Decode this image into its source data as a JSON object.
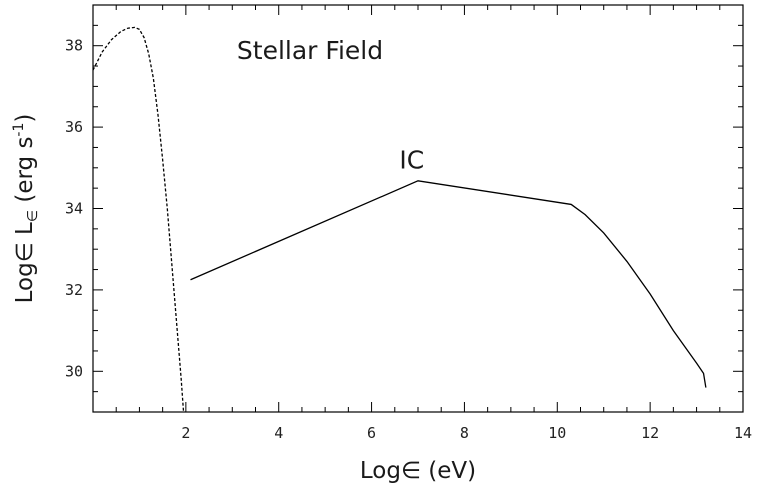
{
  "chart_data": {
    "type": "line",
    "xlabel": {
      "main": "Log∈ (eV)"
    },
    "ylabel": {
      "prefix": "Log∈ L",
      "subscript": "∈",
      "units_open": " (erg s",
      "units_exp": "-1",
      "units_close": ")"
    },
    "xlim": [
      0,
      14
    ],
    "ylim": [
      29,
      39
    ],
    "x_ticks": [
      2,
      4,
      6,
      8,
      10,
      12,
      14
    ],
    "y_ticks": [
      30,
      32,
      34,
      36,
      38
    ],
    "x_tick_labels": [
      "2",
      "4",
      "6",
      "8",
      "10",
      "12",
      "14"
    ],
    "y_tick_labels": [
      "30",
      "32",
      "34",
      "36",
      "38"
    ],
    "annotations": [
      {
        "text": "Stellar Field",
        "x": 3.1,
        "y": 37.9
      },
      {
        "text": "IC",
        "x": 6.6,
        "y": 35.2
      }
    ],
    "series": [
      {
        "style": "dashed",
        "color": "#000000",
        "x": [
          0.0,
          0.2,
          0.4,
          0.6,
          0.75,
          0.9,
          1.0,
          1.1,
          1.2,
          1.3,
          1.4,
          1.5,
          1.6,
          1.7,
          1.8,
          1.9,
          1.95
        ],
        "y": [
          37.4,
          37.85,
          38.15,
          38.35,
          38.43,
          38.45,
          38.4,
          38.2,
          37.8,
          37.2,
          36.3,
          35.2,
          34.0,
          32.6,
          31.2,
          29.8,
          29.0
        ]
      },
      {
        "style": "solid",
        "color": "#000000",
        "x": [
          2.1,
          7.0,
          10.3,
          10.6,
          11.0,
          11.5,
          12.0,
          12.5,
          13.0,
          13.15,
          13.2
        ],
        "y": [
          32.25,
          34.68,
          34.1,
          33.85,
          33.4,
          32.7,
          31.9,
          31.0,
          30.2,
          29.95,
          29.6
        ]
      }
    ]
  }
}
